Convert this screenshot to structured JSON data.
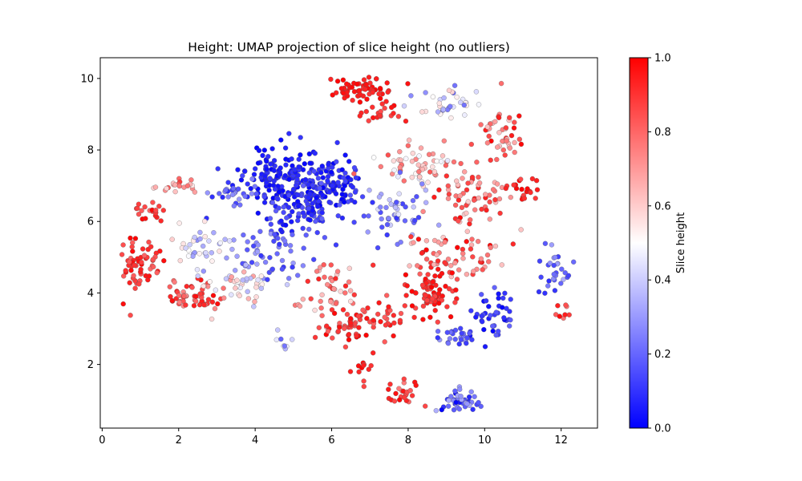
{
  "chart_data": {
    "type": "scatter",
    "title": "Height: UMAP projection of slice height (no outliers)",
    "xlabel": "",
    "ylabel": "",
    "xlim": [
      -0.05,
      12.95
    ],
    "ylim": [
      0.22,
      10.58
    ],
    "xticks": [
      "0",
      "2",
      "4",
      "6",
      "8",
      "10",
      "12"
    ],
    "yticks": [
      "2",
      "4",
      "6",
      "8",
      "10"
    ],
    "grid": false,
    "legend": "none",
    "colorbar": {
      "label": "Slice height",
      "range": [
        0.0,
        1.0
      ],
      "ticks": [
        "0.0",
        "0.2",
        "0.4",
        "0.6",
        "0.8",
        "1.0"
      ],
      "colormap": "bwr",
      "colors": {
        "low": "#0000ff",
        "mid": "#ffffff",
        "high": "#ff0000"
      }
    },
    "marker_edge_color": "#555555",
    "clusters": [
      {
        "cx": 4.6,
        "cy": 7.3,
        "sx": 0.6,
        "sy": 0.55,
        "n": 140,
        "v": [
          0.0,
          0.12
        ]
      },
      {
        "cx": 6.0,
        "cy": 7.0,
        "sx": 0.55,
        "sy": 0.55,
        "n": 120,
        "v": [
          0.0,
          0.15
        ]
      },
      {
        "cx": 5.2,
        "cy": 6.3,
        "sx": 0.55,
        "sy": 0.5,
        "n": 80,
        "v": [
          0.02,
          0.2
        ]
      },
      {
        "cx": 3.4,
        "cy": 6.8,
        "sx": 0.5,
        "sy": 0.35,
        "n": 30,
        "v": [
          0.05,
          0.3
        ]
      },
      {
        "cx": 4.3,
        "cy": 5.2,
        "sx": 0.8,
        "sy": 0.45,
        "n": 60,
        "v": [
          0.1,
          0.35
        ]
      },
      {
        "cx": 6.8,
        "cy": 9.7,
        "sx": 0.55,
        "sy": 0.2,
        "n": 55,
        "v": [
          0.9,
          1.0
        ]
      },
      {
        "cx": 7.3,
        "cy": 9.1,
        "sx": 0.4,
        "sy": 0.25,
        "n": 25,
        "v": [
          0.85,
          1.0
        ]
      },
      {
        "cx": 9.1,
        "cy": 9.3,
        "sx": 0.6,
        "sy": 0.35,
        "n": 35,
        "v": [
          0.2,
          0.6
        ]
      },
      {
        "cx": 10.5,
        "cy": 8.4,
        "sx": 0.35,
        "sy": 0.5,
        "n": 45,
        "v": [
          0.6,
          1.0
        ]
      },
      {
        "cx": 8.3,
        "cy": 7.6,
        "sx": 0.7,
        "sy": 0.4,
        "n": 60,
        "v": [
          0.45,
          0.85
        ]
      },
      {
        "cx": 9.6,
        "cy": 6.6,
        "sx": 0.7,
        "sy": 0.5,
        "n": 60,
        "v": [
          0.55,
          0.95
        ]
      },
      {
        "cx": 11.0,
        "cy": 6.9,
        "sx": 0.3,
        "sy": 0.25,
        "n": 20,
        "v": [
          0.85,
          1.0
        ]
      },
      {
        "cx": 7.6,
        "cy": 6.2,
        "sx": 0.55,
        "sy": 0.6,
        "n": 55,
        "v": [
          0.1,
          0.45
        ]
      },
      {
        "cx": 9.2,
        "cy": 5.0,
        "sx": 0.8,
        "sy": 0.55,
        "n": 70,
        "v": [
          0.6,
          1.0
        ]
      },
      {
        "cx": 8.6,
        "cy": 4.0,
        "sx": 0.4,
        "sy": 0.4,
        "n": 70,
        "v": [
          0.85,
          1.0
        ]
      },
      {
        "cx": 10.3,
        "cy": 3.4,
        "sx": 0.45,
        "sy": 0.5,
        "n": 45,
        "v": [
          0.0,
          0.2
        ]
      },
      {
        "cx": 9.3,
        "cy": 2.8,
        "sx": 0.4,
        "sy": 0.2,
        "n": 25,
        "v": [
          0.1,
          0.3
        ]
      },
      {
        "cx": 11.8,
        "cy": 4.5,
        "sx": 0.3,
        "sy": 0.45,
        "n": 30,
        "v": [
          0.05,
          0.35
        ]
      },
      {
        "cx": 12.1,
        "cy": 3.5,
        "sx": 0.15,
        "sy": 0.2,
        "n": 8,
        "v": [
          0.7,
          1.0
        ]
      },
      {
        "cx": 1.0,
        "cy": 4.8,
        "sx": 0.35,
        "sy": 0.5,
        "n": 60,
        "v": [
          0.8,
          1.0
        ]
      },
      {
        "cx": 1.2,
        "cy": 6.2,
        "sx": 0.3,
        "sy": 0.25,
        "n": 20,
        "v": [
          0.8,
          1.0
        ]
      },
      {
        "cx": 1.9,
        "cy": 7.0,
        "sx": 0.35,
        "sy": 0.15,
        "n": 20,
        "v": [
          0.55,
          0.9
        ]
      },
      {
        "cx": 2.5,
        "cy": 3.9,
        "sx": 0.6,
        "sy": 0.25,
        "n": 55,
        "v": [
          0.7,
          1.0
        ]
      },
      {
        "cx": 3.6,
        "cy": 4.2,
        "sx": 0.6,
        "sy": 0.3,
        "n": 40,
        "v": [
          0.35,
          0.7
        ]
      },
      {
        "cx": 2.4,
        "cy": 5.3,
        "sx": 0.5,
        "sy": 0.5,
        "n": 35,
        "v": [
          0.25,
          0.6
        ]
      },
      {
        "cx": 5.9,
        "cy": 4.2,
        "sx": 0.5,
        "sy": 0.55,
        "n": 45,
        "v": [
          0.55,
          0.95
        ]
      },
      {
        "cx": 6.4,
        "cy": 3.1,
        "sx": 0.5,
        "sy": 0.3,
        "n": 45,
        "v": [
          0.8,
          1.0
        ]
      },
      {
        "cx": 7.4,
        "cy": 3.3,
        "sx": 0.5,
        "sy": 0.35,
        "n": 30,
        "v": [
          0.8,
          1.0
        ]
      },
      {
        "cx": 6.9,
        "cy": 2.0,
        "sx": 0.2,
        "sy": 0.35,
        "n": 12,
        "v": [
          0.85,
          1.0
        ]
      },
      {
        "cx": 7.9,
        "cy": 1.2,
        "sx": 0.3,
        "sy": 0.3,
        "n": 25,
        "v": [
          0.75,
          1.0
        ]
      },
      {
        "cx": 9.4,
        "cy": 0.95,
        "sx": 0.45,
        "sy": 0.2,
        "n": 45,
        "v": [
          0.0,
          0.35
        ]
      },
      {
        "cx": 4.8,
        "cy": 2.7,
        "sx": 0.15,
        "sy": 0.2,
        "n": 8,
        "v": [
          0.15,
          0.5
        ]
      }
    ]
  }
}
